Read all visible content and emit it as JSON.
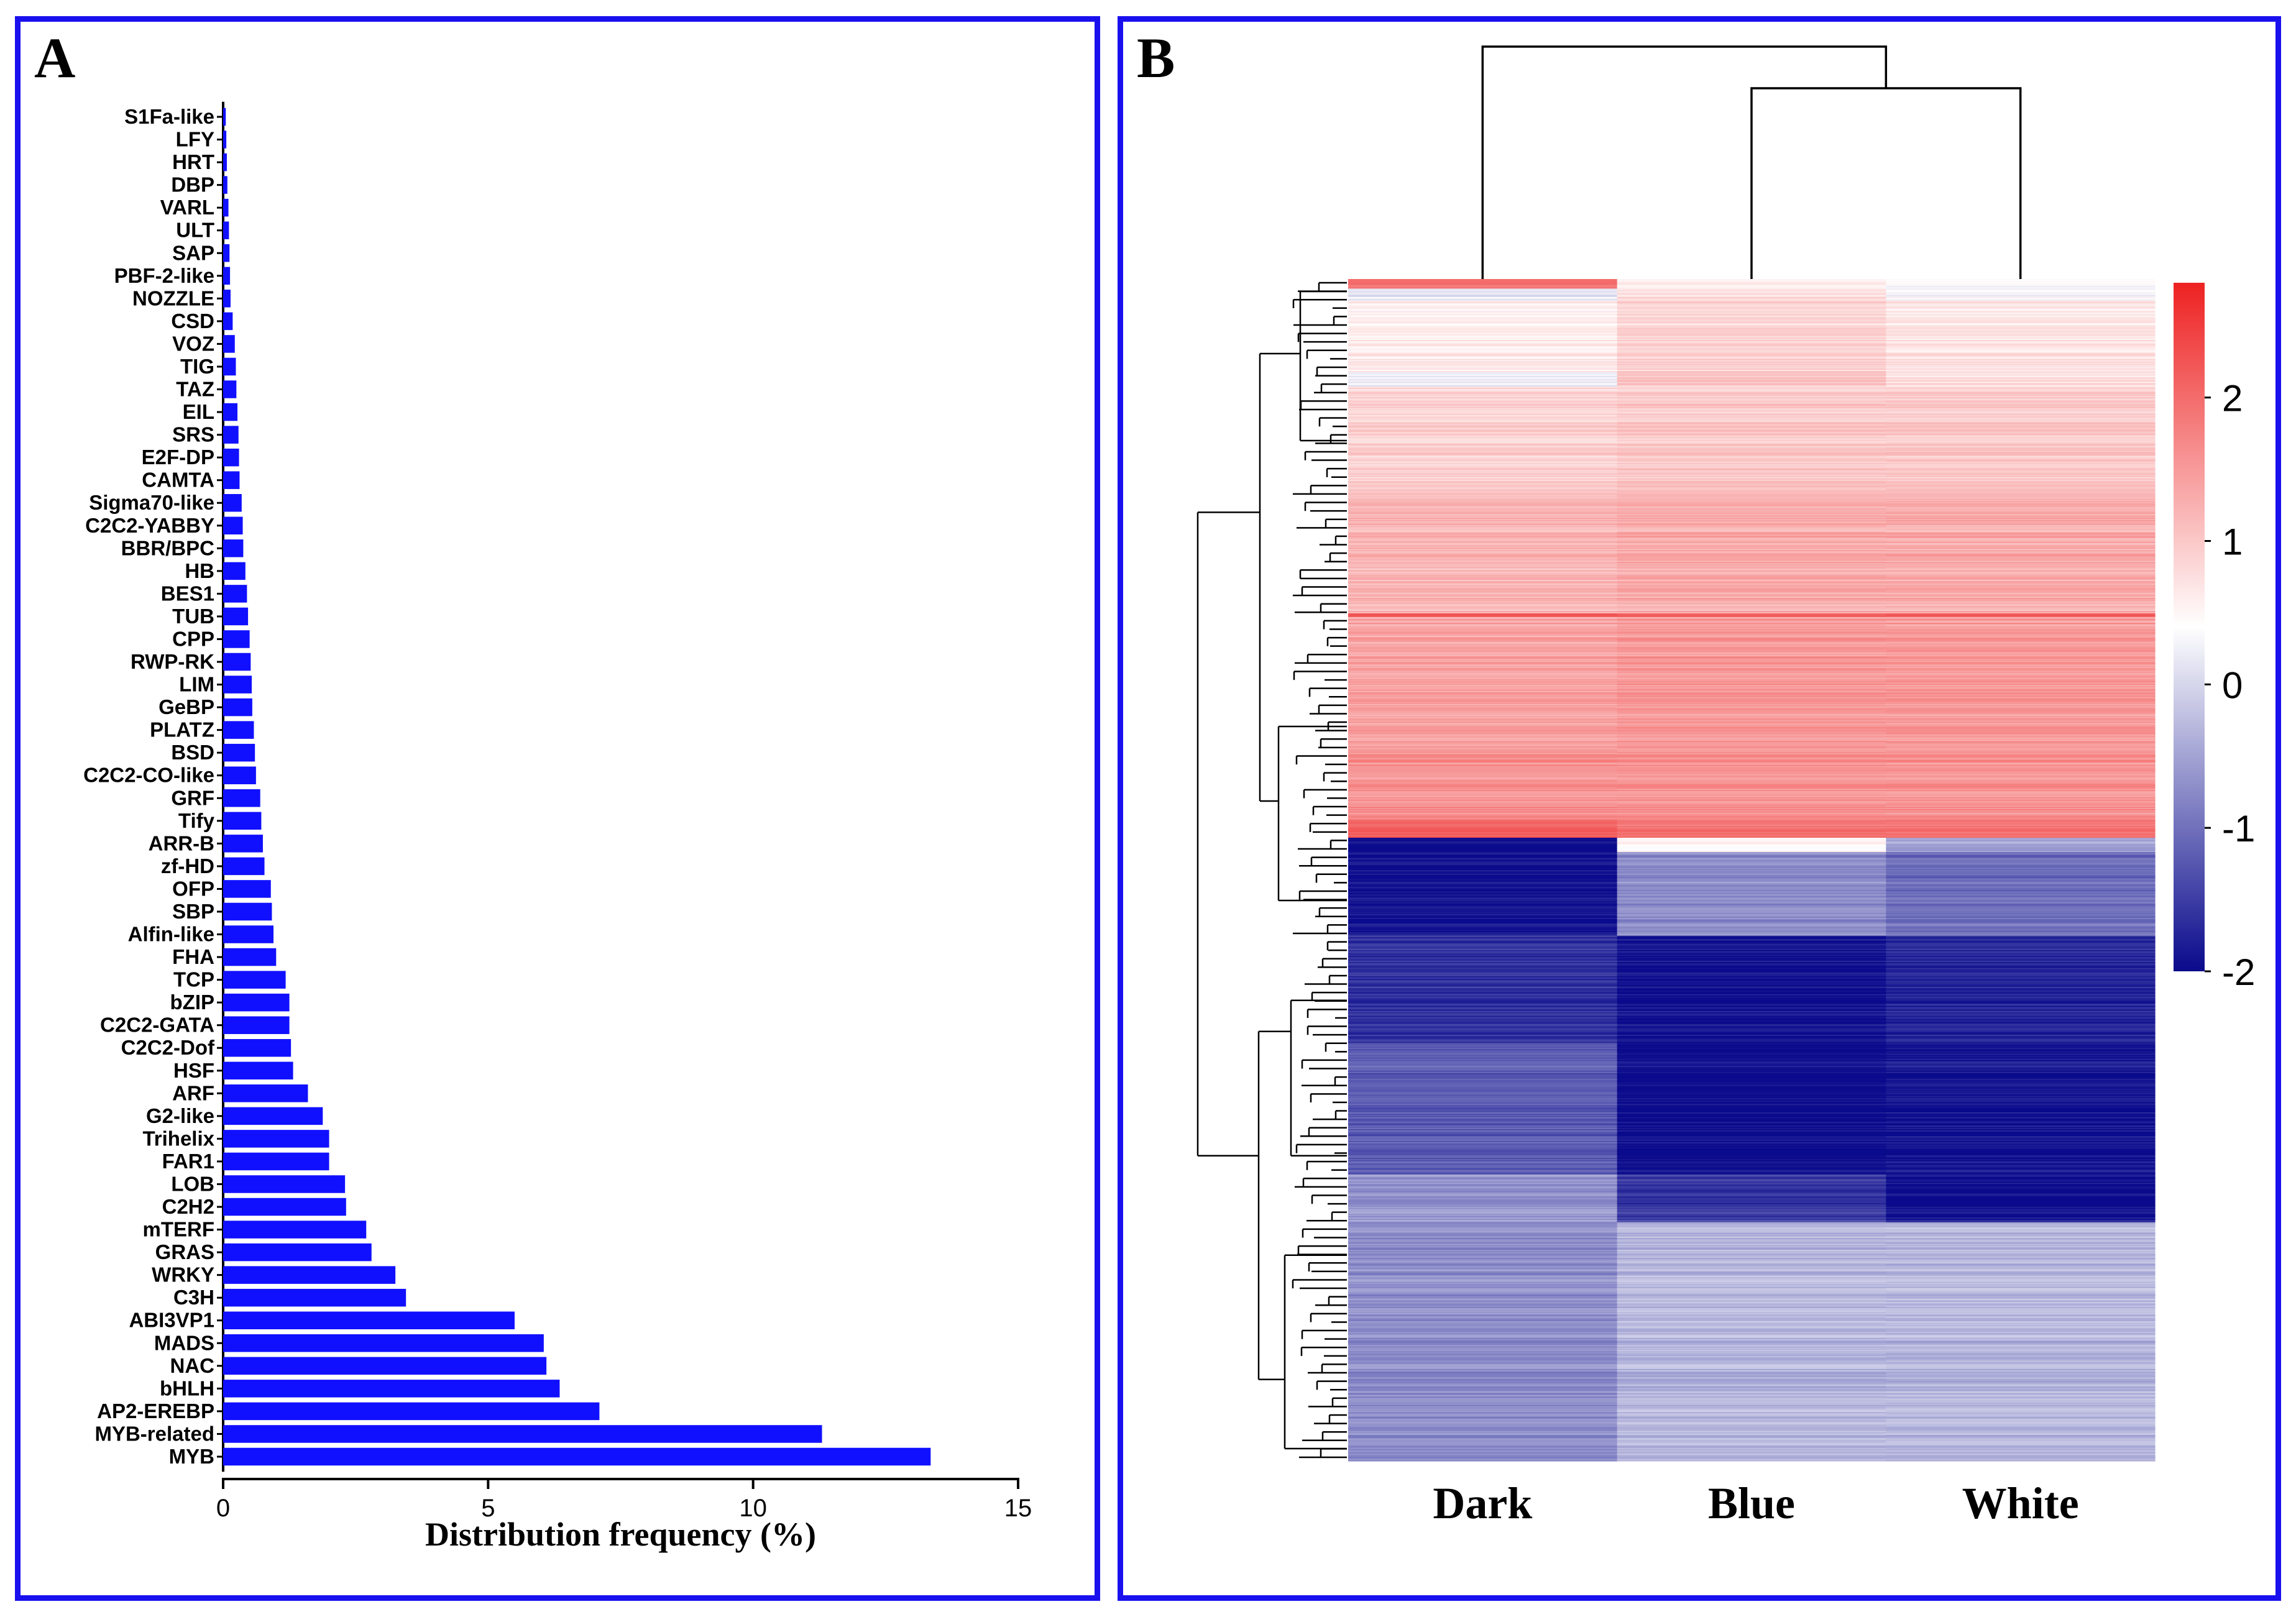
{
  "panel_a": {
    "letter": "A"
  },
  "panel_b": {
    "letter": "B"
  },
  "chart_data": [
    {
      "type": "bar",
      "orientation": "horizontal",
      "title": "",
      "xlabel": "Distribution frequency (%)",
      "ylabel": "",
      "xlim": [
        0,
        15
      ],
      "xticks": [
        "0",
        "5",
        "10",
        "15"
      ],
      "bar_color": "#1010ff",
      "categories": [
        "S1Fa-like",
        "LFY",
        "HRT",
        "DBP",
        "VARL",
        "ULT",
        "SAP",
        "PBF-2-like",
        "NOZZLE",
        "CSD",
        "VOZ",
        "TIG",
        "TAZ",
        "EIL",
        "SRS",
        "E2F-DP",
        "CAMTA",
        "Sigma70-like",
        "C2C2-YABBY",
        "BBR/BPC",
        "HB",
        "BES1",
        "TUB",
        "CPP",
        "RWP-RK",
        "LIM",
        "GeBP",
        "PLATZ",
        "BSD",
        "C2C2-CO-like",
        "GRF",
        "Tify",
        "ARR-B",
        "zf-HD",
        "OFP",
        "SBP",
        "Alfin-like",
        "FHA",
        "TCP",
        "bZIP",
        "C2C2-GATA",
        "C2C2-Dof",
        "HSF",
        "ARF",
        "G2-like",
        "Trihelix",
        "FAR1",
        "LOB",
        "C2H2",
        "mTERF",
        "GRAS",
        "WRKY",
        "C3H",
        "ABI3VP1",
        "MADS",
        "NAC",
        "bHLH",
        "AP2-EREBP",
        "MYB-related",
        "MYB"
      ],
      "values": [
        0.05,
        0.06,
        0.07,
        0.08,
        0.1,
        0.11,
        0.12,
        0.13,
        0.14,
        0.18,
        0.22,
        0.24,
        0.25,
        0.27,
        0.29,
        0.3,
        0.31,
        0.35,
        0.37,
        0.38,
        0.42,
        0.45,
        0.47,
        0.5,
        0.52,
        0.54,
        0.55,
        0.58,
        0.6,
        0.62,
        0.7,
        0.72,
        0.75,
        0.78,
        0.9,
        0.92,
        0.95,
        1.0,
        1.18,
        1.25,
        1.25,
        1.28,
        1.32,
        1.6,
        1.88,
        2.0,
        2.0,
        2.3,
        2.32,
        2.7,
        2.8,
        3.25,
        3.45,
        5.5,
        6.05,
        6.1,
        6.35,
        7.1,
        11.3,
        13.35
      ]
    },
    {
      "type": "heatmap",
      "columns": [
        "Dark",
        "Blue",
        "White"
      ],
      "colorbar": {
        "min": -2,
        "max": 2.8,
        "ticks": [
          "2",
          "1",
          "0",
          "-1",
          "-2"
        ],
        "colors": [
          "#0a0a8c",
          "#ffffff",
          "#ee2222"
        ]
      },
      "column_dendrogram": "White and Blue cluster first, then join Dark",
      "row_groups": [
        {
          "rows": 8,
          "values": [
            2.0,
            0.6,
            0.4
          ]
        },
        {
          "rows": 10,
          "values": [
            0.2,
            0.8,
            0.4
          ]
        },
        {
          "rows": 60,
          "values": [
            0.6,
            0.9,
            0.7
          ]
        },
        {
          "rows": 12,
          "values": [
            0.3,
            1.1,
            0.8
          ]
        },
        {
          "rows": 90,
          "values": [
            0.9,
            1.0,
            1.0
          ]
        },
        {
          "rows": 100,
          "values": [
            1.2,
            1.3,
            1.3
          ]
        },
        {
          "rows": 3,
          "values": [
            2.2,
            2.1,
            2.1
          ]
        },
        {
          "rows": 110,
          "values": [
            1.4,
            1.5,
            1.5
          ]
        },
        {
          "rows": 60,
          "values": [
            1.6,
            1.6,
            1.6
          ]
        },
        {
          "rows": 15,
          "values": [
            2.1,
            1.9,
            1.9
          ]
        },
        {
          "rows": 12,
          "values": [
            -2.0,
            0.5,
            -0.5
          ]
        },
        {
          "rows": 70,
          "values": [
            -1.9,
            -0.7,
            -1.0
          ]
        },
        {
          "rows": 90,
          "values": [
            -1.6,
            -1.9,
            -1.7
          ]
        },
        {
          "rows": 110,
          "values": [
            -1.2,
            -2.0,
            -1.9
          ]
        },
        {
          "rows": 40,
          "values": [
            -0.6,
            -1.5,
            -1.9
          ]
        },
        {
          "rows": 200,
          "values": [
            -0.7,
            -0.3,
            -0.3
          ]
        }
      ]
    }
  ]
}
